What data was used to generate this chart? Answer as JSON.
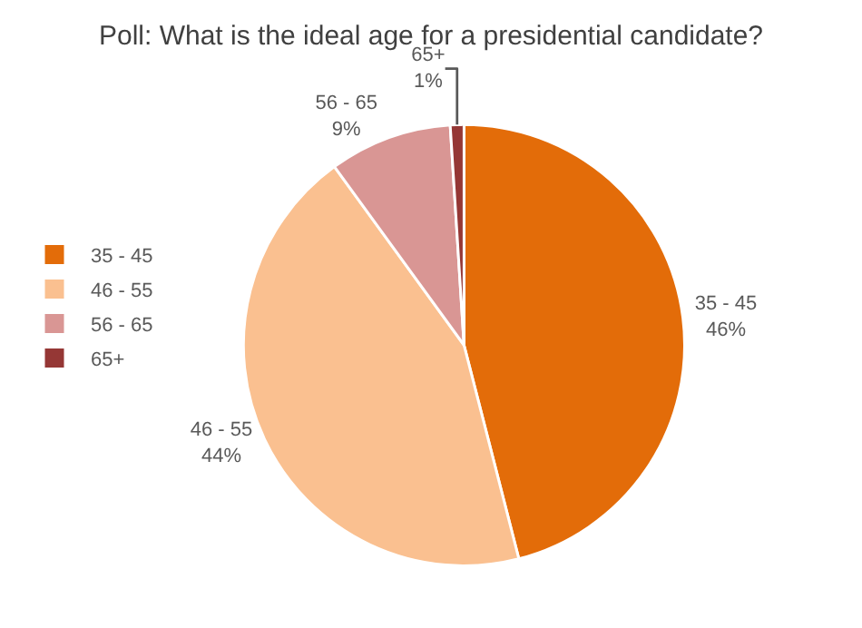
{
  "chart_data": {
    "type": "pie",
    "title": "Poll: What is the ideal age for a presidential candidate?",
    "categories": [
      "35 - 45",
      "46 - 55",
      "56 - 65",
      "65+"
    ],
    "values": [
      46,
      44,
      9,
      1
    ],
    "value_labels": [
      "46%",
      "44%",
      "9%",
      "1%"
    ],
    "colors": [
      "#e36c09",
      "#fac090",
      "#d99694",
      "#953735"
    ],
    "legend": "left"
  }
}
